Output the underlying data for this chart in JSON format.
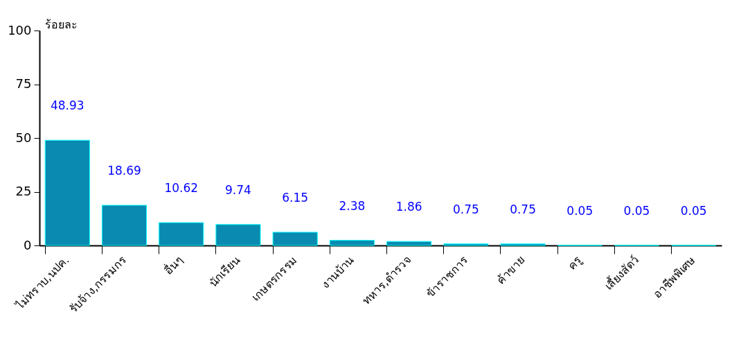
{
  "chart_data": {
    "type": "bar",
    "ylabel": "ร้อยละ",
    "categories": [
      "ไม่ทราบ,นปค.",
      "รับจ้าง,กรรมกร",
      "อื่นๆ",
      "นักเรียน",
      "เกษตรกรรม",
      "งานบ้าน",
      "ทหาร,ตำรวจ",
      "ข้าราชการ",
      "ค้าขาย",
      "ครู",
      "เลี้ยงสัตว์",
      "อาชีพพิเศษ"
    ],
    "values": [
      48.93,
      18.69,
      10.62,
      9.74,
      6.15,
      2.38,
      1.86,
      0.75,
      0.75,
      0.05,
      0.05,
      0.05
    ],
    "color": "#0a8ab0",
    "data_labels": true,
    "grid": false,
    "ylim": [
      0,
      100
    ],
    "yticks": [
      0,
      25,
      50,
      75,
      100
    ]
  }
}
